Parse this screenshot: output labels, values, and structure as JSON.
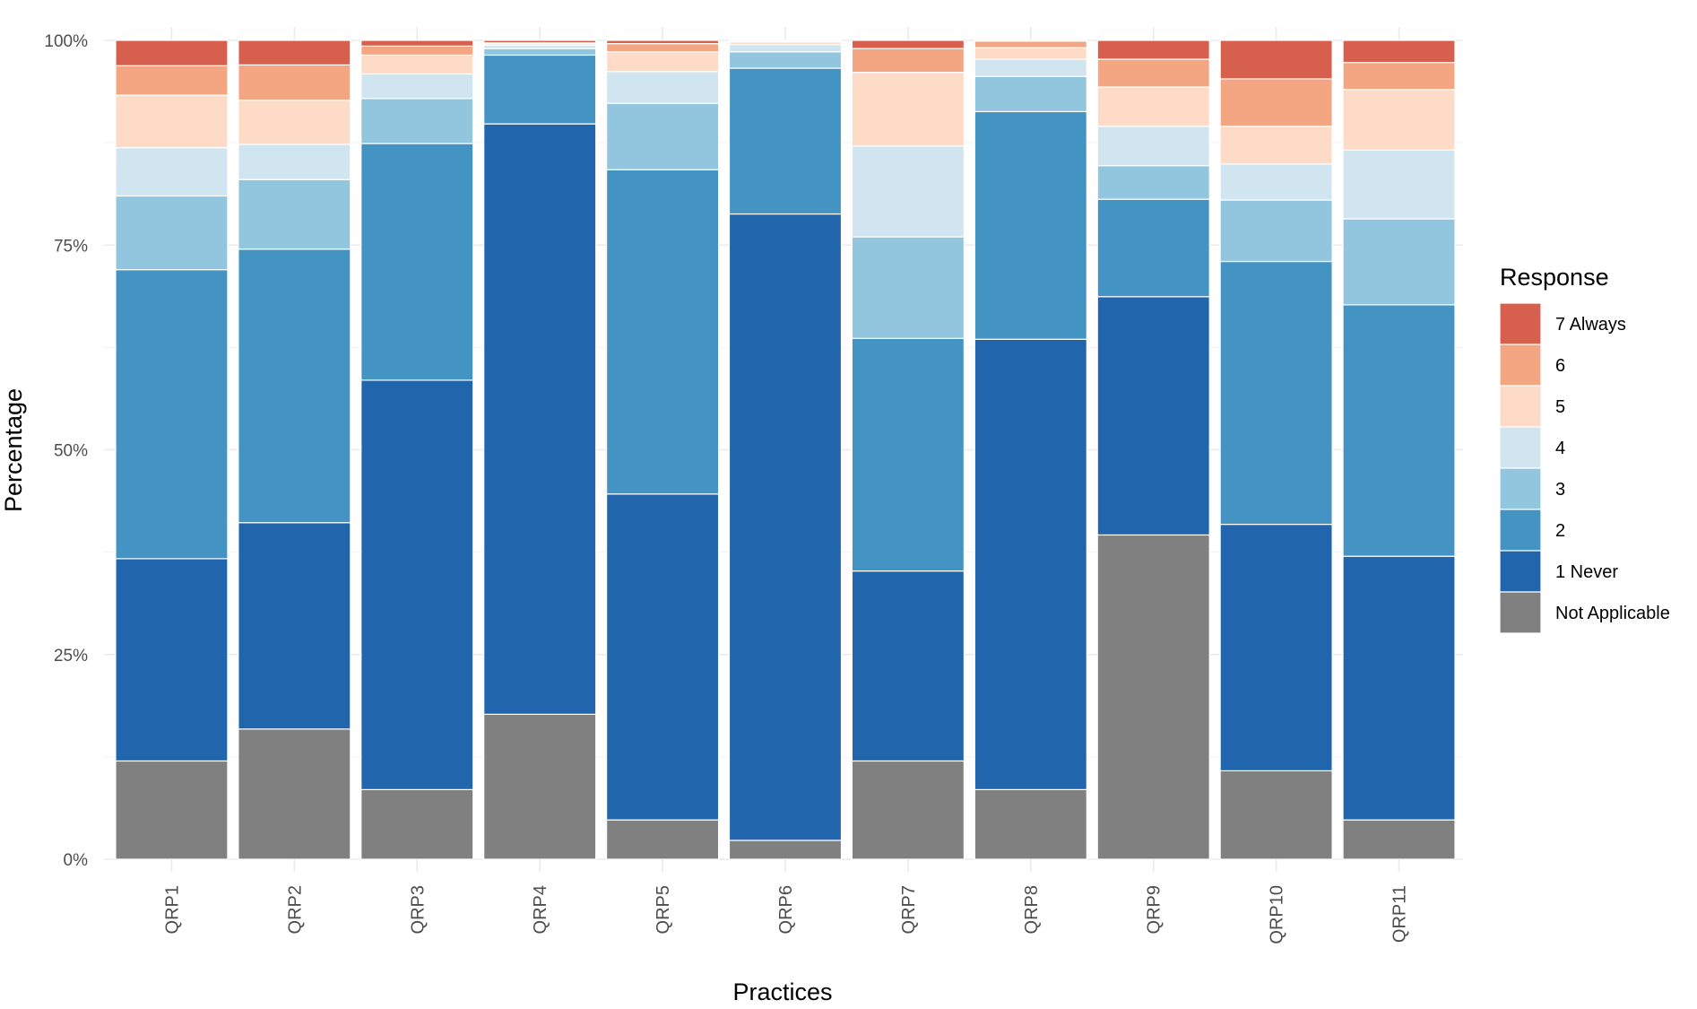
{
  "chart_data": {
    "type": "bar",
    "stacked": true,
    "title": "",
    "xlabel": "Practices",
    "ylabel": "Percentage",
    "ylim": [
      0,
      100
    ],
    "yticks": [
      "0%",
      "25%",
      "50%",
      "75%",
      "100%"
    ],
    "grid": true,
    "legend_title": "Response",
    "legend_position": "right",
    "categories": [
      "QRP1",
      "QRP2",
      "QRP3",
      "QRP4",
      "QRP5",
      "QRP6",
      "QRP7",
      "QRP8",
      "QRP9",
      "QRP10",
      "QRP11"
    ],
    "series": [
      {
        "name": "Not Applicable",
        "color": "#808080",
        "values": [
          12.0,
          15.9,
          8.5,
          17.7,
          4.8,
          2.3,
          12.0,
          8.5,
          39.6,
          10.8,
          4.8
        ]
      },
      {
        "name": "1 Never",
        "color": "#2166ac",
        "values": [
          24.7,
          25.2,
          50.0,
          72.1,
          39.8,
          76.5,
          23.2,
          55.0,
          29.1,
          30.1,
          32.2
        ]
      },
      {
        "name": "2",
        "color": "#4393c3",
        "values": [
          35.3,
          33.4,
          28.9,
          8.4,
          39.6,
          17.8,
          28.4,
          27.8,
          11.9,
          32.1,
          30.7
        ]
      },
      {
        "name": "3",
        "color": "#92c5de",
        "values": [
          9.0,
          8.5,
          5.5,
          0.8,
          8.1,
          2.0,
          12.4,
          4.3,
          4.1,
          7.5,
          10.5
        ]
      },
      {
        "name": "4",
        "color": "#d1e5f0",
        "values": [
          5.9,
          4.3,
          3.0,
          0.4,
          3.9,
          0.9,
          11.1,
          2.1,
          4.8,
          4.4,
          8.4
        ]
      },
      {
        "name": "5",
        "color": "#fddbc7",
        "values": [
          6.4,
          5.4,
          2.3,
          0.2,
          2.4,
          0.3,
          9.0,
          1.4,
          4.8,
          4.6,
          7.4
        ]
      },
      {
        "name": "6",
        "color": "#f4a582",
        "values": [
          3.6,
          4.3,
          1.1,
          0.1,
          1.0,
          0.1,
          2.9,
          0.8,
          3.4,
          5.8,
          3.3
        ]
      },
      {
        "name": "7 Always",
        "color": "#d6604d",
        "values": [
          3.1,
          3.0,
          0.7,
          0.3,
          0.4,
          0.1,
          1.0,
          0.1,
          2.3,
          4.7,
          2.7
        ]
      }
    ]
  }
}
